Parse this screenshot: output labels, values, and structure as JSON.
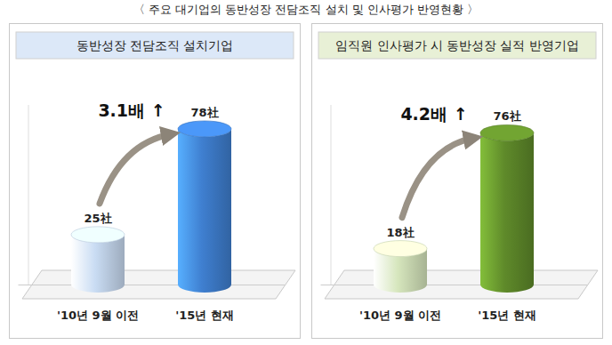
{
  "title": "〈 주요 대기업의 동반성장 전담조직 설치 및 인사평가 반영현황 〉",
  "chart_data": [
    {
      "type": "bar",
      "title": "동반성장 전담조직 설치기업",
      "categories": [
        "'10년 9월 이전",
        "'15년 현재"
      ],
      "values": [
        25,
        78
      ],
      "value_labels": [
        "25社",
        "78社"
      ],
      "colors": [
        "#c9dcf3",
        "#3f7fd0"
      ],
      "ylim": [
        0,
        90
      ],
      "tick_labels": "x",
      "data_labels": true,
      "annotations": [
        "3.1배 ↑"
      ]
    },
    {
      "type": "bar",
      "title": "임직원 인사평가 시 동반성장 실적 반영기업",
      "categories": [
        "'10년 9월 이전",
        "'15년 현재"
      ],
      "values": [
        18,
        76
      ],
      "value_labels": [
        "18社",
        "76社"
      ],
      "colors": [
        "#d6e6bd",
        "#5f8a2a"
      ],
      "ylim": [
        0,
        90
      ],
      "tick_labels": "x",
      "data_labels": true,
      "annotations": [
        "4.2배 ↑"
      ]
    }
  ]
}
